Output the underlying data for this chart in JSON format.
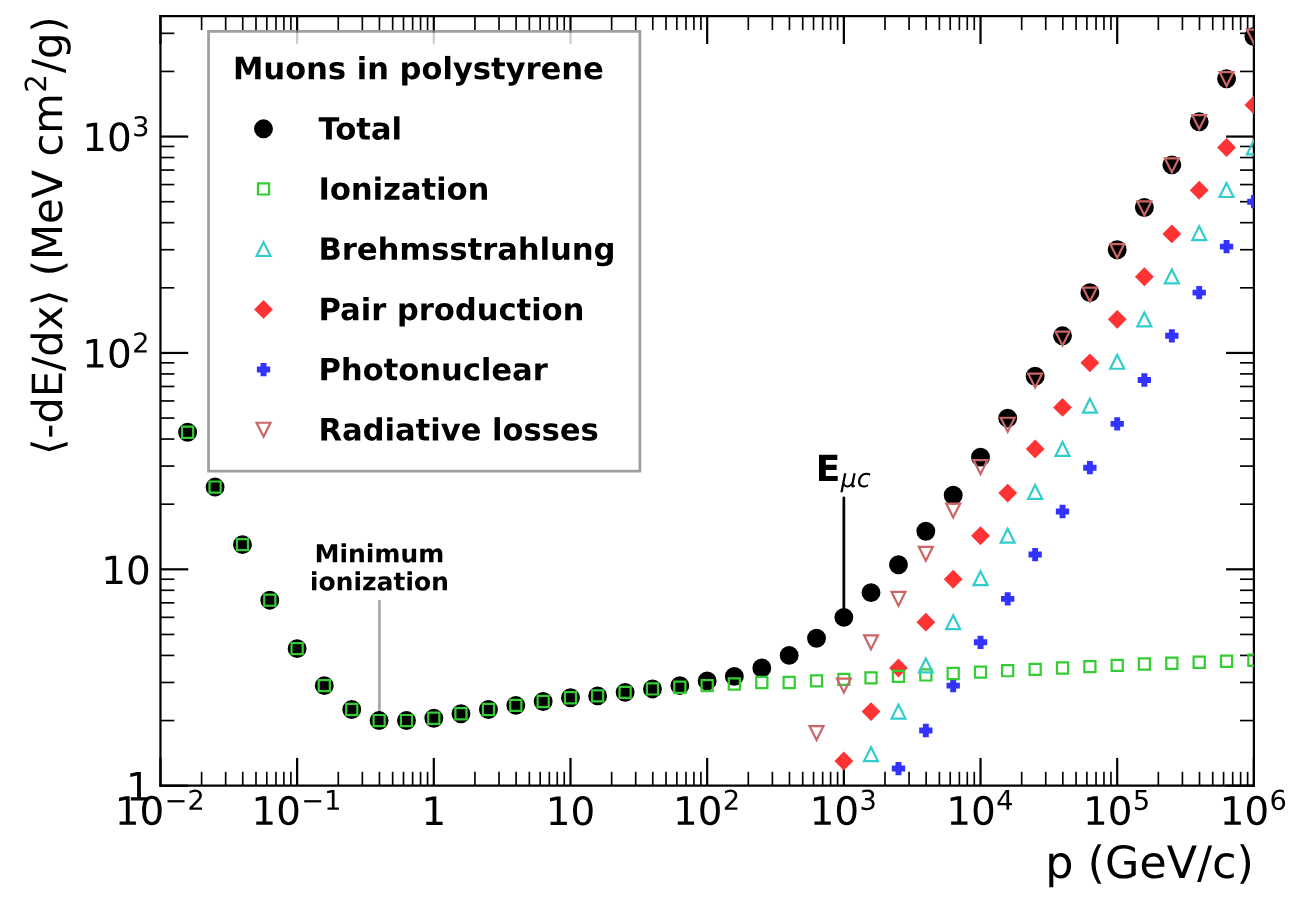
{
  "chart_data": {
    "type": "scatter",
    "xlabel": "p (GeV/c)",
    "ylabel": "⟨-dE/dx⟩ (MeV cm$^{2}$/g)",
    "legend_title": "Muons in polystyrene",
    "log": "xy",
    "legend": "top left",
    "grid": false,
    "x": [
      0.0158,
      0.0251,
      0.0398,
      0.0631,
      0.1,
      0.158,
      0.251,
      0.398,
      0.631,
      1,
      1.58,
      2.51,
      3.98,
      6.31,
      10,
      15.8,
      25.1,
      39.8,
      63.1,
      100,
      158,
      251,
      398,
      631,
      1000,
      1580,
      2510,
      3980,
      6310,
      10000,
      15800,
      25100,
      39800,
      63100,
      100000,
      158000,
      251000,
      398000,
      631000,
      1000000
    ],
    "series": [
      {
        "name": "Total",
        "color": "#000000",
        "marker": "circle",
        "values": [
          43,
          24,
          13,
          7.2,
          4.3,
          2.9,
          2.25,
          2.0,
          2.0,
          2.05,
          2.15,
          2.25,
          2.35,
          2.45,
          2.55,
          2.6,
          2.7,
          2.8,
          2.9,
          3.05,
          3.2,
          3.5,
          4.0,
          4.8,
          6.0,
          7.8,
          10.5,
          15,
          22,
          33,
          50,
          78,
          120,
          190,
          300,
          470,
          740,
          1170,
          1850,
          2900
        ]
      },
      {
        "name": "Ionization",
        "color": "#33cc33",
        "marker": "square",
        "values": [
          43,
          24,
          13,
          7.2,
          4.3,
          2.9,
          2.25,
          2.0,
          2.0,
          2.05,
          2.15,
          2.25,
          2.35,
          2.45,
          2.55,
          2.6,
          2.7,
          2.8,
          2.85,
          2.9,
          2.95,
          3.0,
          3.0,
          3.05,
          3.1,
          3.15,
          3.2,
          3.25,
          3.3,
          3.35,
          3.4,
          3.45,
          3.5,
          3.55,
          3.6,
          3.65,
          3.68,
          3.72,
          3.76,
          3.8
        ]
      },
      {
        "name": "Brehmsstrahlung",
        "color": "#33cccc",
        "marker": "triangle",
        "values": [
          null,
          null,
          null,
          null,
          null,
          null,
          null,
          null,
          null,
          null,
          null,
          null,
          null,
          null,
          null,
          null,
          null,
          null,
          null,
          null,
          null,
          null,
          null,
          null,
          null,
          1.4,
          2.2,
          3.6,
          5.7,
          9.1,
          14.3,
          22.8,
          36,
          57,
          91,
          143,
          226,
          358,
          566,
          890
        ]
      },
      {
        "name": "Pair production",
        "color": "#ff3333",
        "marker": "diamond",
        "values": [
          null,
          null,
          null,
          null,
          null,
          null,
          null,
          null,
          null,
          null,
          null,
          null,
          null,
          null,
          null,
          null,
          null,
          null,
          null,
          null,
          null,
          null,
          null,
          null,
          1.3,
          2.2,
          3.5,
          5.7,
          9,
          14.3,
          22.5,
          36,
          56,
          90,
          143,
          225,
          355,
          565,
          890,
          1400
        ]
      },
      {
        "name": "Photonuclear",
        "color": "#3333ff",
        "marker": "cross",
        "values": [
          null,
          null,
          null,
          null,
          null,
          null,
          null,
          null,
          null,
          null,
          null,
          null,
          null,
          null,
          null,
          null,
          null,
          null,
          null,
          null,
          null,
          null,
          null,
          null,
          null,
          null,
          1.2,
          1.8,
          2.9,
          4.6,
          7.3,
          11.7,
          18.5,
          29.5,
          47,
          75,
          120,
          190,
          310,
          500
        ]
      },
      {
        "name": "Radiative losses",
        "color": "#cc6666",
        "marker": "triangle_down",
        "values": [
          null,
          null,
          null,
          null,
          null,
          null,
          null,
          null,
          null,
          null,
          null,
          null,
          null,
          null,
          null,
          null,
          null,
          null,
          null,
          null,
          null,
          null,
          null,
          1.75,
          2.9,
          4.6,
          7.3,
          11.8,
          18.7,
          29.7,
          46.6,
          74.5,
          116.5,
          186,
          296,
          466,
          736,
          1166,
          1846,
          2896
        ]
      }
    ],
    "xlim": [
      0.01,
      1000000
    ],
    "ylim": [
      1,
      3600
    ],
    "xticks": [
      {
        "value": 0.01,
        "label": "10$^{−2}$"
      },
      {
        "value": 0.1,
        "label": "10$^{−1}$"
      },
      1,
      10,
      {
        "value": 100,
        "label": "10$^{2}$"
      },
      {
        "value": 1000,
        "label": "10$^{3}$"
      },
      {
        "value": 10000,
        "label": "10$^{4}$"
      },
      {
        "value": 100000,
        "label": "10$^{5}$"
      },
      {
        "value": 1000000,
        "label": "10$^{6}$"
      }
    ],
    "yticks": [
      1,
      10,
      {
        "value": 100,
        "label": "10$^{2}$"
      },
      {
        "value": 1000,
        "label": "10$^{3}$"
      }
    ],
    "annotations": [
      {
        "text": "Minimum\nionization",
        "x": 0.4,
        "y": 2.0
      },
      {
        "text": "E$_{μc}$",
        "x": 1000,
        "y": 6.0
      }
    ]
  }
}
